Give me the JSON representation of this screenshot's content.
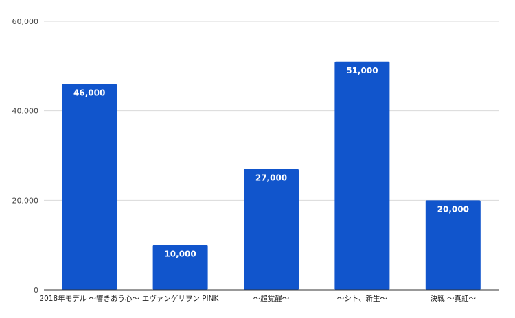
{
  "chart_data": {
    "type": "bar",
    "title": "",
    "xlabel": "",
    "ylabel": "",
    "categories": [
      "2018年モデル ～響きあう心～",
      "エヴァンゲリヲン PINK",
      "～超覚醒～",
      "～シト、新生～",
      "決戦 ～真紅～"
    ],
    "values": [
      46000,
      10000,
      27000,
      51000,
      20000
    ],
    "data_labels": [
      "46,000",
      "10,000",
      "27,000",
      "51,000",
      "20,000"
    ],
    "ylim": [
      0,
      60000
    ],
    "yticks": [
      0,
      20000,
      40000,
      60000
    ],
    "ytick_labels": [
      "0",
      "20,000",
      "40,000",
      "60,000"
    ],
    "grid": true,
    "legend": "none",
    "bar_color": "#1155cc",
    "grid_color": "#d9d9d9",
    "axis_color": "#333333"
  }
}
